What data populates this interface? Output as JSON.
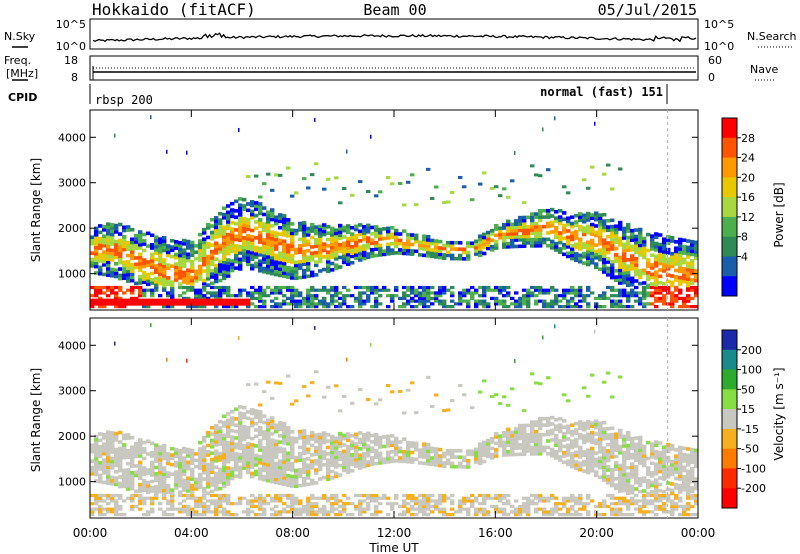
{
  "header": {
    "station": "Hokkaido (fitACF)",
    "beam": "Beam 00",
    "date": "05/Jul/2015"
  },
  "top_panels": {
    "nsky_label": "N.Sky",
    "nsearch_label": "N.Search",
    "nsky_ticks": [
      "10^5",
      "10^0"
    ],
    "nsearch_ticks": [
      "10^5",
      "10^0"
    ],
    "freq_label_1": "Freq.",
    "freq_label_2": "[MHz]",
    "freq_ticks": [
      "18",
      "8"
    ],
    "nave_label": "Nave",
    "nave_ticks": [
      "60",
      "0"
    ],
    "cpid_label": "CPID",
    "cpid_left": "rbsp 200",
    "cpid_right": "normal (fast) 151"
  },
  "chart_data": [
    {
      "type": "heatmap",
      "panel": "power",
      "ylabel": "Slant Range [km]",
      "yticks": [
        1000,
        2000,
        3000,
        4000
      ],
      "ylim": [
        200,
        4600
      ],
      "colorbar_label": "Power [dB]",
      "colorbar_ticks": [
        "28",
        "24",
        "20",
        "16",
        "12",
        "8",
        "4"
      ],
      "colorbar_colors": [
        "#ff0000",
        "#ff5500",
        "#ff9900",
        "#e8c800",
        "#a8d840",
        "#4cae4c",
        "#2e8b57",
        "#1a5fa8",
        "#0000ff"
      ],
      "bands": [
        {
          "x": [
            0,
            1,
            2,
            3,
            4,
            5,
            6,
            7,
            8,
            9,
            10,
            11,
            12,
            13,
            14,
            15,
            16,
            17,
            18,
            19,
            20,
            21,
            22,
            23
          ],
          "y_center_km": [
            1500,
            1500,
            1200,
            1000,
            900,
            1600,
            1900,
            1700,
            1500,
            1500,
            1600,
            1700,
            1700,
            1600,
            1500,
            1500,
            1800,
            1900,
            2000,
            1800,
            1700,
            1400,
            1100,
            1000
          ]
        }
      ]
    },
    {
      "type": "heatmap",
      "panel": "velocity",
      "ylabel": "Slant Range [km]",
      "yticks": [
        1000,
        2000,
        3000,
        4000
      ],
      "ylim": [
        200,
        4600
      ],
      "colorbar_label": "Velocity [m s⁻¹]",
      "colorbar_ticks": [
        "200",
        "100",
        "50",
        "15",
        "-15",
        "-50",
        "-100",
        "-200"
      ],
      "colorbar_colors": [
        "#1a2aa8",
        "#1a8a8a",
        "#2eaa2e",
        "#88dd44",
        "#c8c8c0",
        "#f5b020",
        "#ff7a00",
        "#ff2a00",
        "#ff0000"
      ],
      "xlabel": "Time UT",
      "xticks": [
        "00:00",
        "04:00",
        "08:00",
        "12:00",
        "16:00",
        "20:00",
        "00:00"
      ]
    }
  ]
}
